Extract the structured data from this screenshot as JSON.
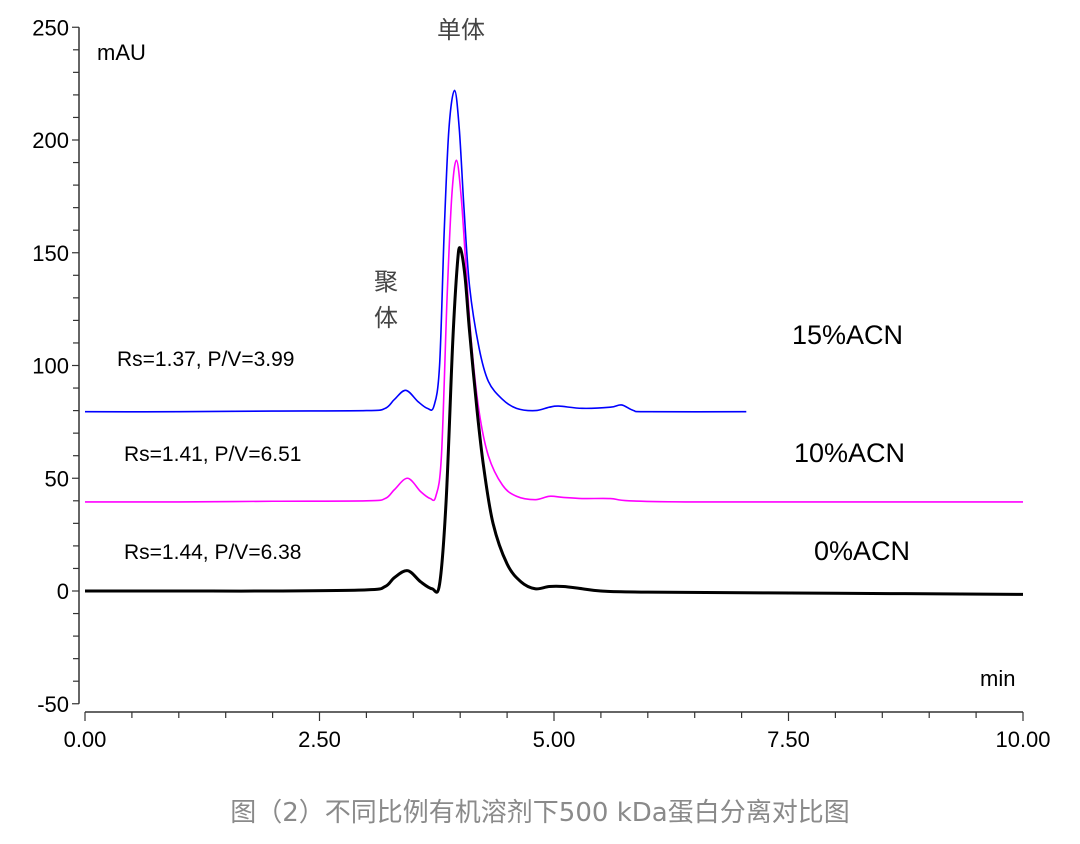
{
  "chart_data": {
    "type": "line",
    "title": "",
    "xlabel": "min",
    "ylabel": "mAU",
    "xlim": [
      0,
      10
    ],
    "ylim": [
      -50,
      250
    ],
    "xticks": [
      "0.00",
      "2.50",
      "5.00",
      "7.50",
      "10.00"
    ],
    "yticks": [
      "-50",
      "0",
      "50",
      "100",
      "150",
      "200",
      "250"
    ],
    "grid": false,
    "annotations": {
      "monomer": "单体",
      "aggregate": "聚体"
    },
    "series": [
      {
        "name": "15%ACN",
        "color": "#0000ff",
        "label": "Rs=1.37, P/V=3.99",
        "points": [
          [
            0,
            79.5
          ],
          [
            1,
            79.5
          ],
          [
            2,
            79.8
          ],
          [
            3.0,
            80
          ],
          [
            3.2,
            81
          ],
          [
            3.3,
            85
          ],
          [
            3.42,
            89
          ],
          [
            3.55,
            84
          ],
          [
            3.65,
            81
          ],
          [
            3.72,
            82
          ],
          [
            3.78,
            100
          ],
          [
            3.83,
            160
          ],
          [
            3.88,
            205
          ],
          [
            3.94,
            222
          ],
          [
            3.99,
            205
          ],
          [
            4.04,
            170
          ],
          [
            4.1,
            135
          ],
          [
            4.2,
            108
          ],
          [
            4.3,
            93
          ],
          [
            4.45,
            85
          ],
          [
            4.6,
            81
          ],
          [
            4.8,
            80
          ],
          [
            4.95,
            81.5
          ],
          [
            5.05,
            82
          ],
          [
            5.3,
            81
          ],
          [
            5.6,
            81.5
          ],
          [
            5.72,
            82.5
          ],
          [
            5.85,
            80
          ],
          [
            6.0,
            79.5
          ],
          [
            7.05,
            79.5
          ]
        ]
      },
      {
        "name": "10%ACN",
        "color": "#ff00ff",
        "label": "Rs=1.41, P/V=6.51",
        "points": [
          [
            0,
            39.5
          ],
          [
            1,
            39.5
          ],
          [
            2,
            39.8
          ],
          [
            3.0,
            40
          ],
          [
            3.2,
            41
          ],
          [
            3.3,
            45
          ],
          [
            3.44,
            50
          ],
          [
            3.58,
            44
          ],
          [
            3.68,
            41
          ],
          [
            3.74,
            42
          ],
          [
            3.8,
            60
          ],
          [
            3.86,
            130
          ],
          [
            3.91,
            175
          ],
          [
            3.96,
            191
          ],
          [
            4.01,
            175
          ],
          [
            4.06,
            145
          ],
          [
            4.12,
            110
          ],
          [
            4.2,
            80
          ],
          [
            4.3,
            60
          ],
          [
            4.45,
            47
          ],
          [
            4.6,
            42
          ],
          [
            4.8,
            40.5
          ],
          [
            4.95,
            42
          ],
          [
            5.1,
            41.5
          ],
          [
            5.3,
            41
          ],
          [
            5.6,
            41
          ],
          [
            5.8,
            40
          ],
          [
            6.5,
            39.5
          ],
          [
            8,
            39.5
          ],
          [
            10,
            39.5
          ]
        ]
      },
      {
        "name": "0%ACN",
        "color": "#000000",
        "label": "Rs=1.44, P/V=6.38",
        "points": [
          [
            0,
            0
          ],
          [
            1,
            0
          ],
          [
            2,
            0
          ],
          [
            3.0,
            0.5
          ],
          [
            3.2,
            2
          ],
          [
            3.3,
            6
          ],
          [
            3.44,
            9
          ],
          [
            3.58,
            4
          ],
          [
            3.7,
            1
          ],
          [
            3.78,
            3
          ],
          [
            3.85,
            40
          ],
          [
            3.92,
            110
          ],
          [
            3.97,
            145
          ],
          [
            4.0,
            152
          ],
          [
            4.05,
            140
          ],
          [
            4.1,
            115
          ],
          [
            4.18,
            80
          ],
          [
            4.25,
            55
          ],
          [
            4.35,
            30
          ],
          [
            4.5,
            12
          ],
          [
            4.65,
            4
          ],
          [
            4.8,
            1
          ],
          [
            4.95,
            2
          ],
          [
            5.1,
            2
          ],
          [
            5.3,
            1
          ],
          [
            5.5,
            0
          ],
          [
            6,
            -0.5
          ],
          [
            8,
            -1
          ],
          [
            10,
            -1.5
          ]
        ]
      }
    ]
  },
  "caption": "图（2）不同比例有机溶剂下500 kDa蛋白分离对比图"
}
